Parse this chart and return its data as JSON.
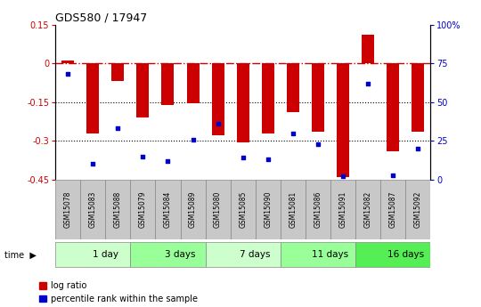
{
  "title": "GDS580 / 17947",
  "samples": [
    "GSM15078",
    "GSM15083",
    "GSM15088",
    "GSM15079",
    "GSM15084",
    "GSM15089",
    "GSM15080",
    "GSM15085",
    "GSM15090",
    "GSM15081",
    "GSM15086",
    "GSM15091",
    "GSM15082",
    "GSM15087",
    "GSM15092"
  ],
  "log_ratio": [
    0.01,
    -0.27,
    -0.07,
    -0.21,
    -0.16,
    -0.155,
    -0.28,
    -0.305,
    -0.27,
    -0.19,
    -0.265,
    -0.44,
    0.11,
    -0.34,
    -0.265
  ],
  "percentile_rank": [
    68,
    10,
    33,
    15,
    12,
    26,
    36,
    14,
    13,
    30,
    23,
    2,
    62,
    3,
    20
  ],
  "groups": [
    {
      "label": "1 day",
      "start": 0,
      "end": 3,
      "color": "#ccffcc"
    },
    {
      "label": "3 days",
      "start": 3,
      "end": 6,
      "color": "#99ff99"
    },
    {
      "label": "7 days",
      "start": 6,
      "end": 9,
      "color": "#ccffcc"
    },
    {
      "label": "11 days",
      "start": 9,
      "end": 12,
      "color": "#99ff99"
    },
    {
      "label": "16 days",
      "start": 12,
      "end": 15,
      "color": "#55ee55"
    }
  ],
  "ylim_left": [
    -0.45,
    0.15
  ],
  "yticks_left": [
    0.15,
    0.0,
    -0.15,
    -0.3,
    -0.45
  ],
  "ytick_labels_left": [
    "0.15",
    "0",
    "-0.15",
    "-0.3",
    "-0.45"
  ],
  "yticks_right_vals": [
    100,
    75,
    50,
    25,
    0
  ],
  "ytick_labels_right": [
    "100%",
    "75",
    "50",
    "25",
    "0"
  ],
  "bar_color": "#cc0000",
  "dot_color": "#0000cc",
  "hline_color": "#cc0000",
  "dotted_lines": [
    -0.15,
    -0.3
  ],
  "bar_width": 0.5,
  "left_ytick_color": "#cc0000",
  "right_ytick_color": "#0000cc",
  "sample_box_color": "#c8c8c8",
  "sample_box_edge": "#888888",
  "fig_bg": "#ffffff"
}
